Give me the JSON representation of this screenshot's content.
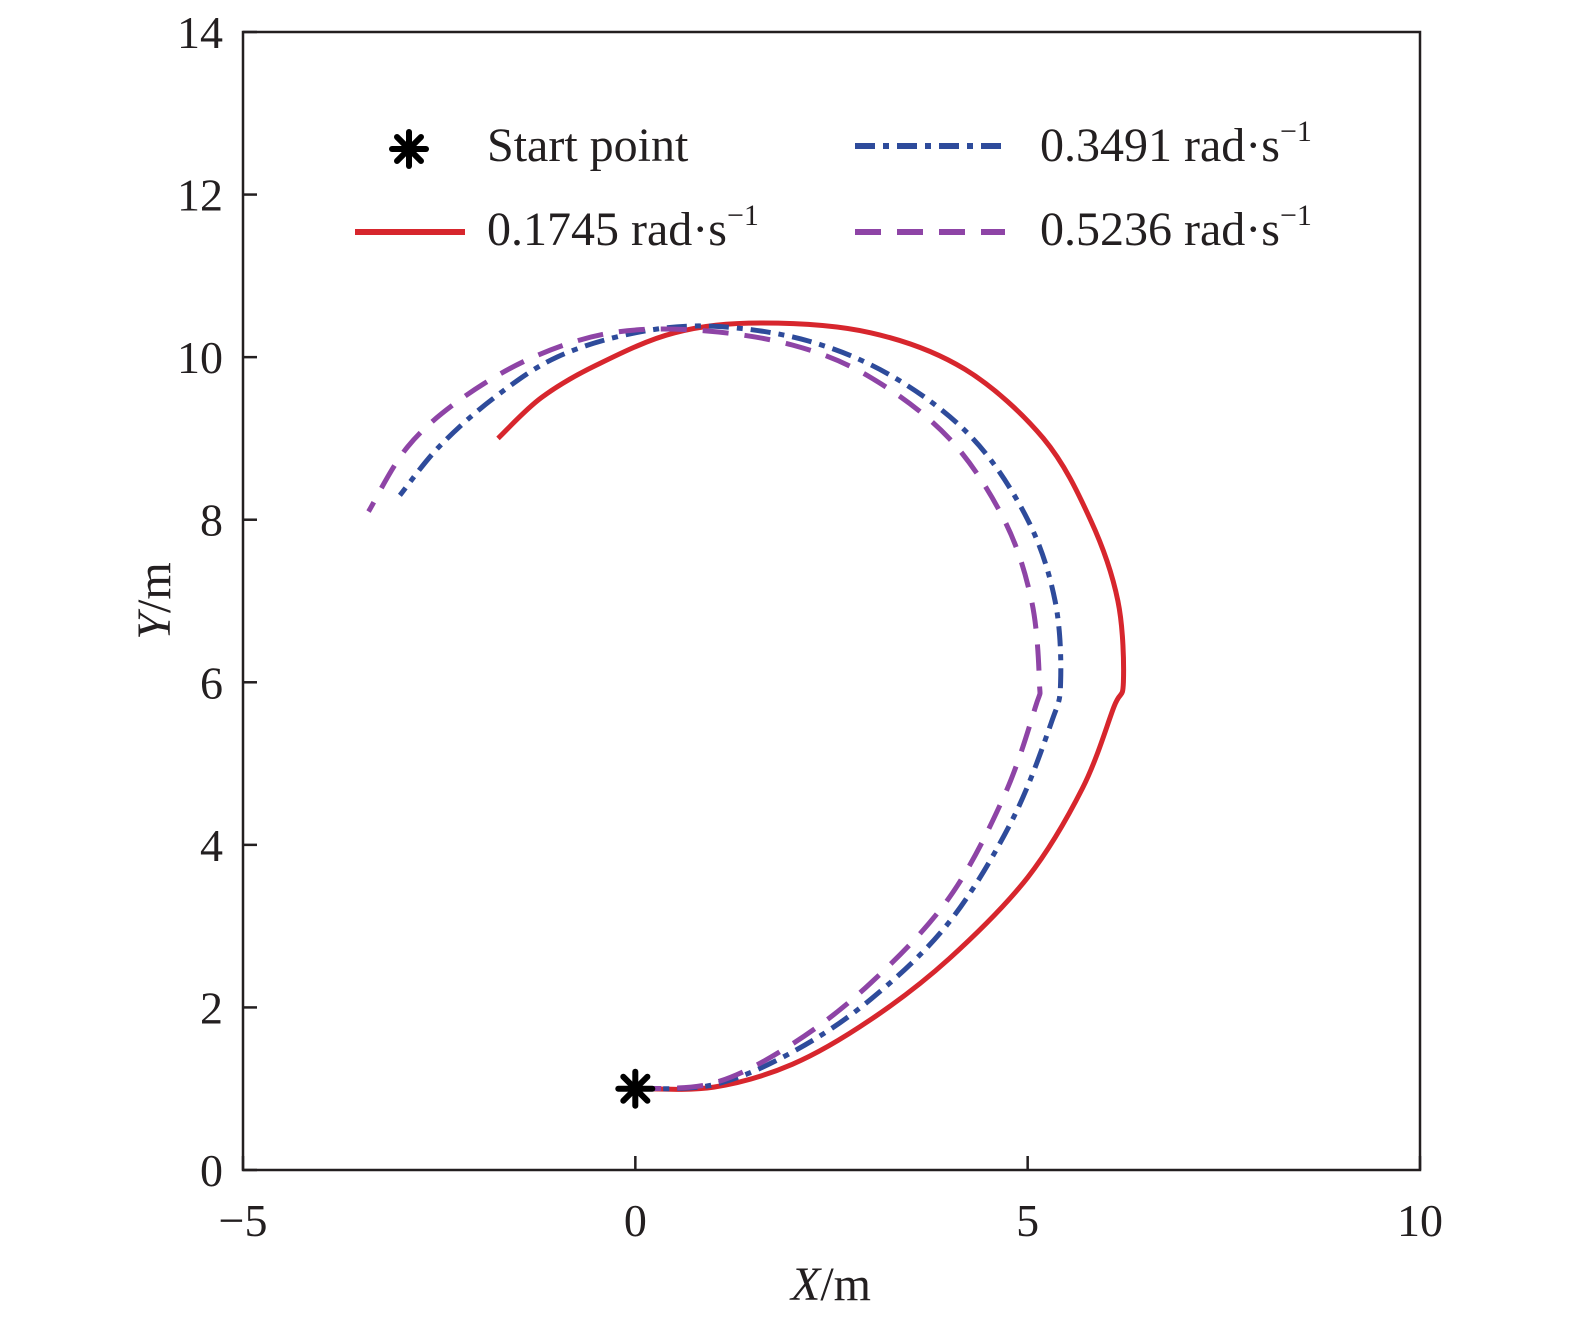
{
  "chart_data": {
    "type": "line",
    "xlabel": {
      "var": "X",
      "unit": "/m"
    },
    "ylabel": {
      "var": "Y",
      "unit": "/m"
    },
    "xlim": [
      -5,
      10
    ],
    "ylim": [
      0,
      14
    ],
    "xticks": [
      -5,
      0,
      5,
      10
    ],
    "yticks": [
      0,
      2,
      4,
      6,
      8,
      10,
      12,
      14
    ],
    "xtick_labels": [
      "−5",
      "0",
      "5",
      "10"
    ],
    "ytick_labels": [
      "0",
      "2",
      "4",
      "6",
      "8",
      "10",
      "12",
      "14"
    ],
    "grid": false,
    "legend_position": "top",
    "start_point": {
      "x": 0,
      "y": 1,
      "label": "Start point",
      "color": "#000000"
    },
    "series": [
      {
        "name": "0.1745 rad·s",
        "name_sup": "−1",
        "color": "#d7262d",
        "style": "solid",
        "points": [
          [
            0,
            1
          ],
          [
            1,
            1.02
          ],
          [
            2,
            1.3
          ],
          [
            3,
            1.85
          ],
          [
            4,
            2.6
          ],
          [
            5,
            3.6
          ],
          [
            5.7,
            4.7
          ],
          [
            6.1,
            5.7
          ],
          [
            6.22,
            6.0
          ],
          [
            6.15,
            7.0
          ],
          [
            5.8,
            8.0
          ],
          [
            5.2,
            9.0
          ],
          [
            4.2,
            9.85
          ],
          [
            3.0,
            10.3
          ],
          [
            1.6,
            10.42
          ],
          [
            0.5,
            10.3
          ],
          [
            -0.5,
            9.9
          ],
          [
            -1.2,
            9.5
          ],
          [
            -1.75,
            9.0
          ]
        ]
      },
      {
        "name": "0.3491 rad·s",
        "name_sup": "−1",
        "color": "#2e4b9b",
        "style": "dashdot",
        "points": [
          [
            0,
            1
          ],
          [
            1,
            1.05
          ],
          [
            2,
            1.45
          ],
          [
            3,
            2.1
          ],
          [
            4,
            3.05
          ],
          [
            4.8,
            4.3
          ],
          [
            5.3,
            5.5
          ],
          [
            5.42,
            6.0
          ],
          [
            5.35,
            7.0
          ],
          [
            5.0,
            8.0
          ],
          [
            4.3,
            9.0
          ],
          [
            3.3,
            9.75
          ],
          [
            2.2,
            10.2
          ],
          [
            1.0,
            10.38
          ],
          [
            0,
            10.3
          ],
          [
            -1.0,
            10.0
          ],
          [
            -1.8,
            9.5
          ],
          [
            -2.5,
            8.9
          ],
          [
            -3.0,
            8.3
          ]
        ]
      },
      {
        "name": "0.5236 rad·s",
        "name_sup": "−1",
        "color": "#8e44a6",
        "style": "dashed",
        "points": [
          [
            0,
            1
          ],
          [
            1,
            1.07
          ],
          [
            2,
            1.55
          ],
          [
            3,
            2.3
          ],
          [
            4,
            3.35
          ],
          [
            4.7,
            4.6
          ],
          [
            5.1,
            5.7
          ],
          [
            5.15,
            6.0
          ],
          [
            5.05,
            7.0
          ],
          [
            4.7,
            8.0
          ],
          [
            4.0,
            9.0
          ],
          [
            3.0,
            9.75
          ],
          [
            2.0,
            10.15
          ],
          [
            0.8,
            10.33
          ],
          [
            -0.3,
            10.3
          ],
          [
            -1.3,
            10.0
          ],
          [
            -2.2,
            9.5
          ],
          [
            -2.9,
            8.9
          ],
          [
            -3.4,
            8.1
          ]
        ]
      }
    ]
  }
}
